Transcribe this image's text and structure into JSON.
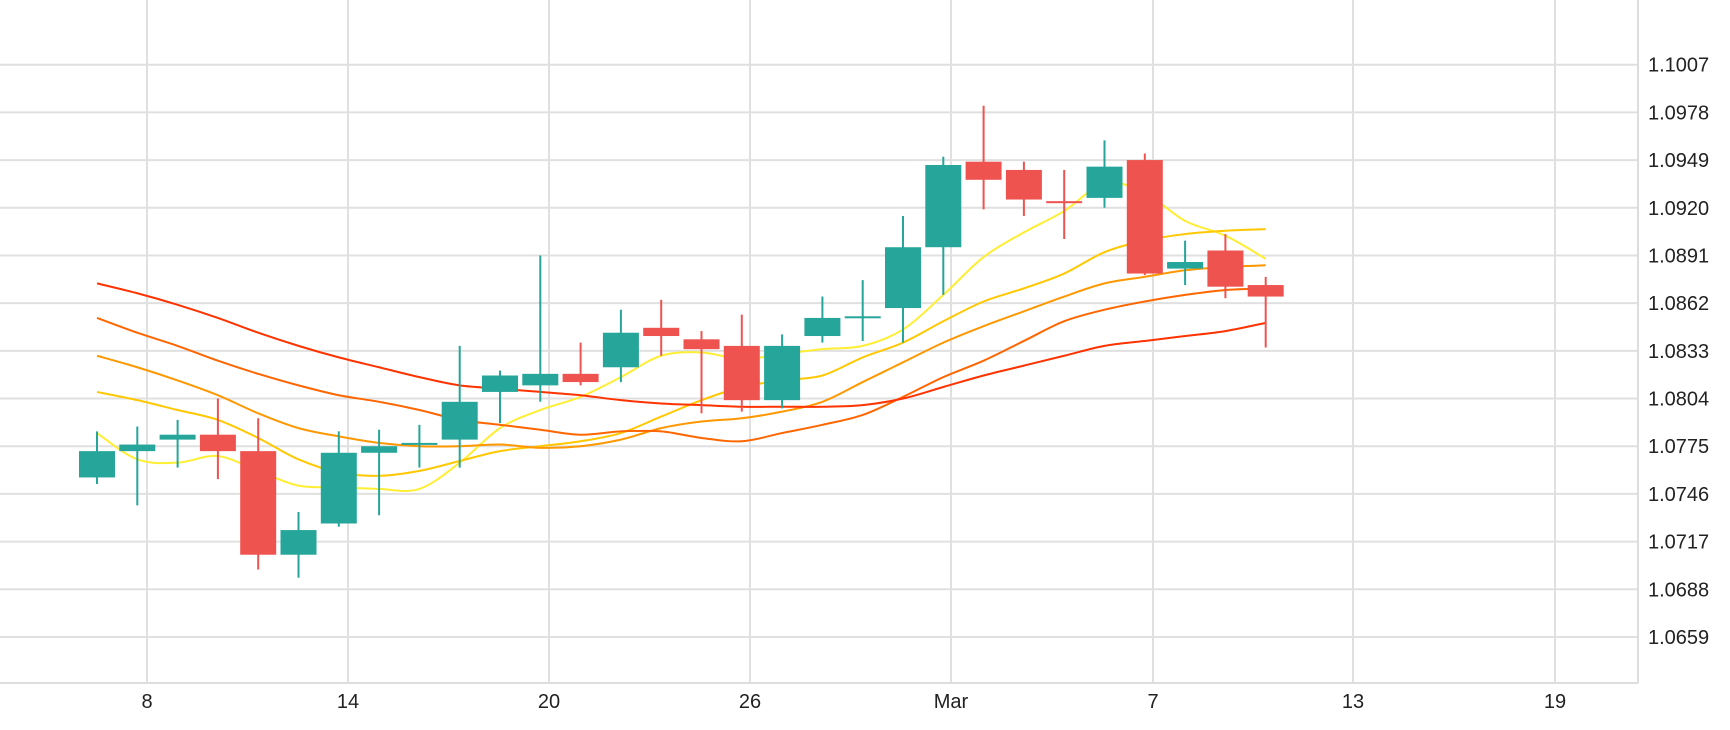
{
  "chart_data": {
    "type": "candlestick",
    "x_tick_labels": [
      "8",
      "14",
      "20",
      "26",
      "Mar",
      "7",
      "13",
      "19"
    ],
    "y_tick_labels": [
      "1.1007",
      "1.0978",
      "1.0949",
      "1.0920",
      "1.0891",
      "1.0862",
      "1.0833",
      "1.0804",
      "1.0775",
      "1.0746",
      "1.0717",
      "1.0688",
      "1.0659"
    ],
    "ylim": [
      1.0631,
      1.1036
    ],
    "grid": true,
    "y_axis_side": "right",
    "candles": [
      {
        "date": "Feb 7",
        "open": 1.0756,
        "high": 1.0784,
        "low": 1.0752,
        "close": 1.0772
      },
      {
        "date": "Feb 8",
        "open": 1.0772,
        "high": 1.0787,
        "low": 1.0739,
        "close": 1.0776
      },
      {
        "date": "Feb 9",
        "open": 1.0779,
        "high": 1.0791,
        "low": 1.0762,
        "close": 1.0782
      },
      {
        "date": "Feb 10",
        "open": 1.0782,
        "high": 1.0804,
        "low": 1.0755,
        "close": 1.0772
      },
      {
        "date": "Feb 13",
        "open": 1.0772,
        "high": 1.0792,
        "low": 1.07,
        "close": 1.0709
      },
      {
        "date": "Feb 14",
        "open": 1.0709,
        "high": 1.0735,
        "low": 1.0695,
        "close": 1.0724
      },
      {
        "date": "Feb 15",
        "open": 1.0728,
        "high": 1.0784,
        "low": 1.0726,
        "close": 1.0771
      },
      {
        "date": "Feb 16",
        "open": 1.0771,
        "high": 1.0785,
        "low": 1.0733,
        "close": 1.0775
      },
      {
        "date": "Feb 17",
        "open": 1.0776,
        "high": 1.0788,
        "low": 1.0762,
        "close": 1.0777
      },
      {
        "date": "Feb 20",
        "open": 1.0779,
        "high": 1.0836,
        "low": 1.0762,
        "close": 1.0802
      },
      {
        "date": "Feb 21",
        "open": 1.0808,
        "high": 1.0821,
        "low": 1.0789,
        "close": 1.0818
      },
      {
        "date": "Feb 22",
        "open": 1.0812,
        "high": 1.0891,
        "low": 1.0802,
        "close": 1.0819
      },
      {
        "date": "Feb 23",
        "open": 1.0819,
        "high": 1.0838,
        "low": 1.0812,
        "close": 1.0814
      },
      {
        "date": "Feb 24",
        "open": 1.0823,
        "high": 1.0858,
        "low": 1.0814,
        "close": 1.0844
      },
      {
        "date": "Feb 27",
        "open": 1.0847,
        "high": 1.0864,
        "low": 1.083,
        "close": 1.0842
      },
      {
        "date": "Feb 28",
        "open": 1.084,
        "high": 1.0845,
        "low": 1.0795,
        "close": 1.0834
      },
      {
        "date": "Mar 1",
        "open": 1.0836,
        "high": 1.0855,
        "low": 1.0796,
        "close": 1.0803
      },
      {
        "date": "Mar 2",
        "open": 1.0803,
        "high": 1.0843,
        "low": 1.0798,
        "close": 1.0836
      },
      {
        "date": "Mar 3",
        "open": 1.0842,
        "high": 1.0866,
        "low": 1.0838,
        "close": 1.0853
      },
      {
        "date": "Mar 6",
        "open": 1.0854,
        "high": 1.0876,
        "low": 1.0839,
        "close": 1.0854
      },
      {
        "date": "Mar 7",
        "open": 1.0859,
        "high": 1.0915,
        "low": 1.0838,
        "close": 1.0896
      },
      {
        "date": "Mar 8",
        "open": 1.0896,
        "high": 1.0951,
        "low": 1.0867,
        "close": 1.0946
      },
      {
        "date": "Mar 9",
        "open": 1.0948,
        "high": 1.0982,
        "low": 1.0919,
        "close": 1.0937
      },
      {
        "date": "Mar 10",
        "open": 1.0943,
        "high": 1.0948,
        "low": 1.0915,
        "close": 1.0925
      },
      {
        "date": "Mar 13",
        "open": 1.0924,
        "high": 1.0943,
        "low": 1.0901,
        "close": 1.0923
      },
      {
        "date": "Mar 14",
        "open": 1.0926,
        "high": 1.0961,
        "low": 1.092,
        "close": 1.0945
      },
      {
        "date": "Mar 15",
        "open": 1.0949,
        "high": 1.0953,
        "low": 1.0879,
        "close": 1.088
      },
      {
        "date": "Mar 16",
        "open": 1.0883,
        "high": 1.09,
        "low": 1.0873,
        "close": 1.0887
      },
      {
        "date": "Mar 17",
        "open": 1.0894,
        "high": 1.0904,
        "low": 1.0865,
        "close": 1.0872
      },
      {
        "date": "Mar 20",
        "open": 1.0873,
        "high": 1.0878,
        "low": 1.0835,
        "close": 1.0866
      }
    ],
    "moving_averages": [
      {
        "color": "#ffee33",
        "values": [
          1.0783,
          1.0767,
          1.0765,
          1.0769,
          1.076,
          1.0751,
          1.075,
          1.0749,
          1.0749,
          1.0765,
          1.0786,
          1.0797,
          1.0805,
          1.0817,
          1.083,
          1.0832,
          1.0828,
          1.0831,
          1.0834,
          1.0836,
          1.0846,
          1.0867,
          1.089,
          1.0905,
          1.0918,
          1.0935,
          1.0929,
          1.0912,
          1.0903,
          1.0889
        ]
      },
      {
        "color": "#ffc800",
        "values": [
          1.0808,
          1.0803,
          1.0797,
          1.0791,
          1.078,
          1.0767,
          1.0759,
          1.0757,
          1.076,
          1.0766,
          1.0772,
          1.0775,
          1.0778,
          1.0783,
          1.0793,
          1.0803,
          1.0811,
          1.0815,
          1.0818,
          1.0829,
          1.0838,
          1.0851,
          1.0863,
          1.0871,
          1.088,
          1.0893,
          1.09,
          1.0904,
          1.0906,
          1.0907
        ]
      },
      {
        "color": "#ff9800",
        "values": [
          1.083,
          1.0823,
          1.0815,
          1.0806,
          1.0795,
          1.0786,
          1.0781,
          1.0777,
          1.0775,
          1.0775,
          1.0776,
          1.0774,
          1.0775,
          1.0779,
          1.0786,
          1.079,
          1.0792,
          1.0796,
          1.0802,
          1.0814,
          1.0826,
          1.0838,
          1.0848,
          1.0857,
          1.0866,
          1.0874,
          1.0878,
          1.0882,
          1.0884,
          1.0885
        ]
      },
      {
        "color": "#ff6600",
        "values": [
          1.0853,
          1.0844,
          1.0836,
          1.0827,
          1.0819,
          1.0812,
          1.0806,
          1.0802,
          1.0797,
          1.0791,
          1.0788,
          1.0785,
          1.0782,
          1.0784,
          1.0784,
          1.078,
          1.0778,
          1.0783,
          1.0788,
          1.0794,
          1.0805,
          1.0817,
          1.0827,
          1.0839,
          1.0851,
          1.0858,
          1.0863,
          1.0867,
          1.087,
          1.0871
        ]
      },
      {
        "color": "#ff3300",
        "values": [
          1.0874,
          1.0868,
          1.0861,
          1.0853,
          1.0844,
          1.0836,
          1.0829,
          1.0823,
          1.0817,
          1.0812,
          1.081,
          1.0808,
          1.0806,
          1.0803,
          1.0801,
          1.08,
          1.0799,
          1.0799,
          1.0799,
          1.08,
          1.0804,
          1.0811,
          1.0818,
          1.0824,
          1.083,
          1.0836,
          1.0839,
          1.0842,
          1.0845,
          1.085
        ]
      }
    ]
  },
  "colors": {
    "up": "#26a69a",
    "down": "#ef5350",
    "grid": "#e0e0e0",
    "axis": "#dddddd",
    "text": "#222222"
  }
}
